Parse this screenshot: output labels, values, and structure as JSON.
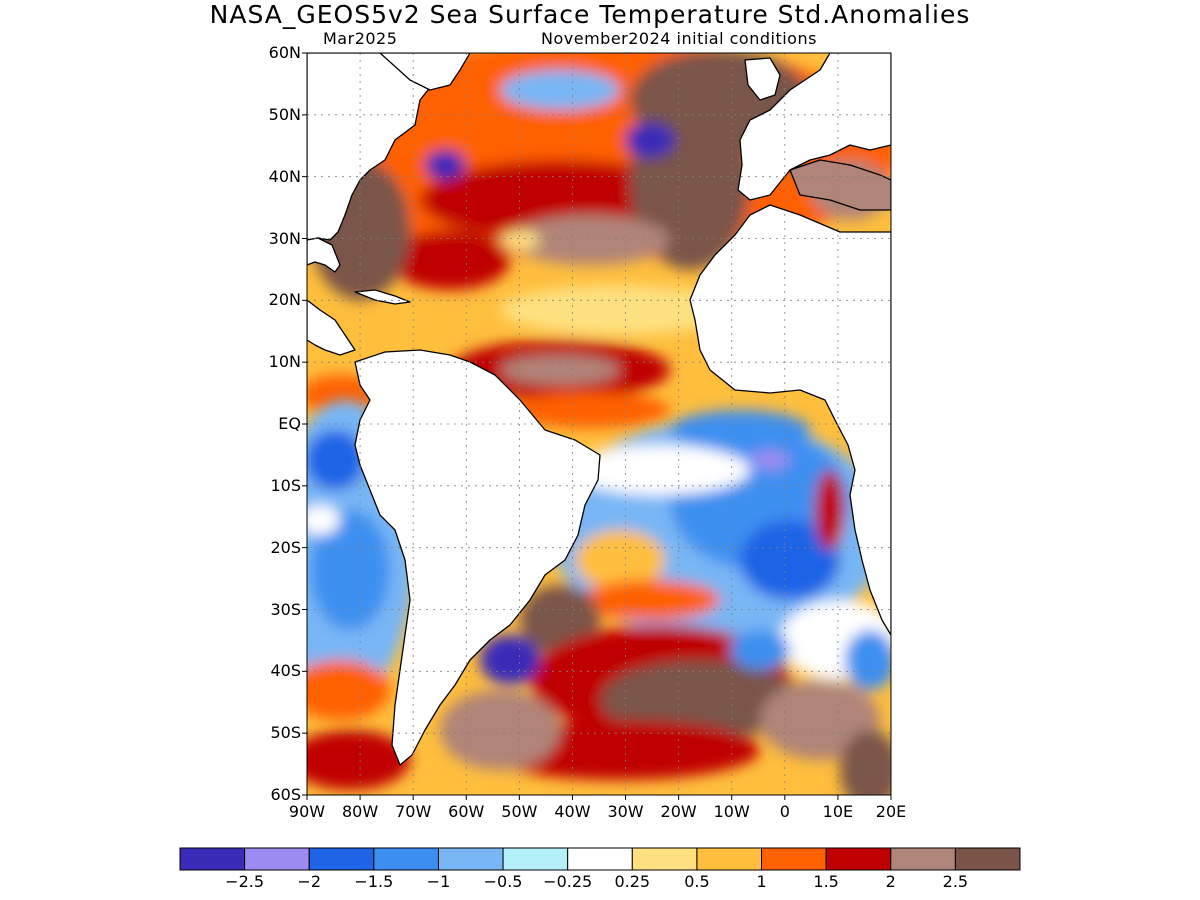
{
  "title": "NASA_GEOS5v2 Sea Surface Temperature Std.Anomalies",
  "subtitle_left": "Mar2025",
  "subtitle_right": "November2024 initial conditions",
  "map": {
    "lon_range": [
      -90,
      20
    ],
    "lat_range": [
      -60,
      60
    ],
    "lat_ticks": [
      {
        "value": 60,
        "label": "60N"
      },
      {
        "value": 50,
        "label": "50N"
      },
      {
        "value": 40,
        "label": "40N"
      },
      {
        "value": 30,
        "label": "30N"
      },
      {
        "value": 20,
        "label": "20N"
      },
      {
        "value": 10,
        "label": "10N"
      },
      {
        "value": 0,
        "label": "EQ"
      },
      {
        "value": -10,
        "label": "10S"
      },
      {
        "value": -20,
        "label": "20S"
      },
      {
        "value": -30,
        "label": "30S"
      },
      {
        "value": -40,
        "label": "40S"
      },
      {
        "value": -50,
        "label": "50S"
      },
      {
        "value": -60,
        "label": "60S"
      }
    ],
    "lon_ticks": [
      {
        "value": -90,
        "label": "90W"
      },
      {
        "value": -80,
        "label": "80W"
      },
      {
        "value": -70,
        "label": "70W"
      },
      {
        "value": -60,
        "label": "60W"
      },
      {
        "value": -50,
        "label": "50W"
      },
      {
        "value": -40,
        "label": "40W"
      },
      {
        "value": -30,
        "label": "30W"
      },
      {
        "value": -20,
        "label": "20W"
      },
      {
        "value": -10,
        "label": "10W"
      },
      {
        "value": 0,
        "label": "0"
      },
      {
        "value": 10,
        "label": "10E"
      },
      {
        "value": 20,
        "label": "20E"
      }
    ],
    "grid": true
  },
  "colorbar": {
    "colors": [
      "#3a2cb8",
      "#9c8cf2",
      "#1f63e6",
      "#3c8ff0",
      "#78b6f5",
      "#b4f0fa",
      "#ffffff",
      "#ffe080",
      "#ffbe3c",
      "#ff6000",
      "#c00000",
      "#b08478",
      "#7a5448"
    ],
    "labels": [
      "−2.5",
      "−2",
      "−1.5",
      "−1",
      "−0.5",
      "−0.25",
      "0.25",
      "0.5",
      "1",
      "1.5",
      "2",
      "2.5"
    ]
  },
  "land_color": "#ffffff",
  "coast_color": "#000000"
}
